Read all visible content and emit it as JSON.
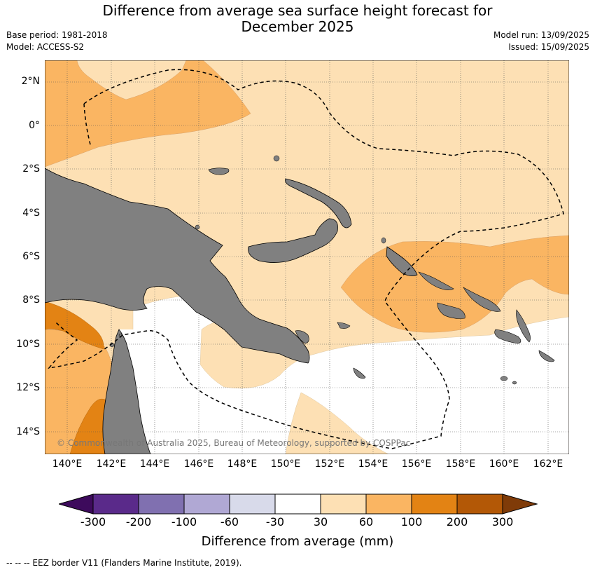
{
  "title": {
    "line1": "Difference from average sea surface height forecast for",
    "line2": "December 2025"
  },
  "meta": {
    "base_period": "Base period: 1981-2018",
    "model": "Model: ACCESS-S2",
    "model_run": "Model run: 13/09/2025",
    "issued": "Issued: 15/09/2025"
  },
  "map": {
    "lat_labels": [
      "2°N",
      "0°",
      "2°S",
      "4°S",
      "6°S",
      "8°S",
      "10°S",
      "12°S",
      "14°S"
    ],
    "lon_labels": [
      "140°E",
      "142°E",
      "144°E",
      "146°E",
      "148°E",
      "150°E",
      "152°E",
      "154°E",
      "156°E",
      "158°E",
      "160°E",
      "162°E"
    ],
    "land_color": "#808080",
    "copyright": "© Commonwealth of Australia 2025, Bureau of Meteorology, supported by COSPPac"
  },
  "colorbar": {
    "ticks": [
      "-300",
      "-200",
      "-100",
      "-60",
      "-30",
      "30",
      "60",
      "100",
      "200",
      "300"
    ],
    "colors": [
      "#3d0a5c",
      "#5a2a8a",
      "#8070b0",
      "#b0a8d4",
      "#d8daea",
      "#ffffff",
      "#fde0b4",
      "#fab562",
      "#e38314",
      "#b35806",
      "#7f3b08"
    ],
    "label": "Difference from average (mm)"
  },
  "footnote": "--  --  -- EEZ border V11 (Flanders Marine Institute, 2019)."
}
